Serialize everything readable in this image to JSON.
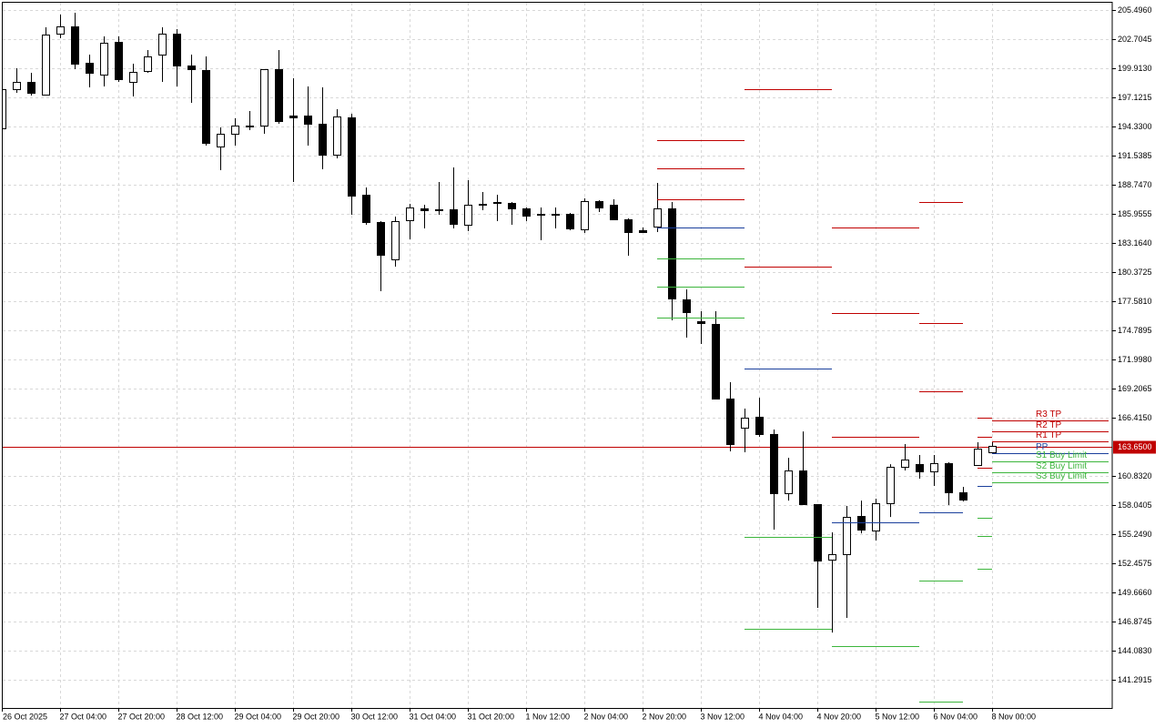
{
  "chart_data": {
    "type": "candlestick",
    "categories": [
      "26 Oct 2025",
      null,
      null,
      null,
      "27 Oct 04:00",
      null,
      null,
      null,
      "27 Oct 20:00",
      null,
      null,
      null,
      "28 Oct 12:00",
      null,
      null,
      null,
      "29 Oct 04:00",
      null,
      null,
      null,
      "29 Oct 20:00",
      null,
      null,
      null,
      "30 Oct 12:00",
      null,
      null,
      null,
      "31 Oct 04:00",
      null,
      null,
      null,
      "31 Oct 20:00",
      null,
      null,
      null,
      "1 Nov 12:00",
      null,
      null,
      null,
      "2 Nov 04:00",
      null,
      null,
      null,
      "2 Nov 20:00",
      null,
      null,
      null,
      "3 Nov 12:00",
      null,
      null,
      null,
      "4 Nov 04:00",
      null,
      null,
      null,
      "4 Nov 20:00",
      null,
      null,
      null,
      "5 Nov 12:00",
      null,
      null,
      null,
      "6 Nov 04:00",
      null,
      null,
      null,
      "8 Nov 00:00"
    ],
    "open": [
      194.16,
      197.91,
      198.6,
      197.38,
      203.23,
      203.93,
      200.44,
      199.3,
      202.44,
      198.6,
      199.65,
      201.22,
      203.23,
      200.18,
      199.74,
      192.41,
      193.63,
      194.33,
      194.42,
      199.83,
      195.38,
      195.38,
      194.59,
      191.63,
      195.2,
      187.79,
      185.17,
      181.59,
      185.34,
      186.48,
      186.3,
      186.39,
      184.91,
      186.83,
      187.09,
      187.0,
      186.48,
      185.87,
      185.96,
      185.96,
      184.47,
      187.18,
      186.83,
      185.43,
      184.38,
      184.73,
      186.48,
      177.75,
      175.66,
      175.4,
      168.25,
      165.45,
      166.5,
      164.84,
      159.17,
      161.35,
      158.13,
      152.8,
      153.33,
      156.99,
      155.6,
      158.21,
      161.7,
      161.96,
      161.27,
      162.05,
      159.26,
      161.88,
      163.1
    ],
    "high": [
      198.6,
      199.91,
      199.48,
      203.84,
      205.06,
      205.23,
      201.22,
      202.97,
      202.97,
      200.35,
      201.66,
      203.84,
      203.66,
      201.22,
      201.05,
      194.24,
      195.12,
      195.81,
      199.83,
      201.66,
      198.95,
      198.17,
      198.08,
      195.99,
      195.55,
      188.49,
      185.26,
      185.69,
      186.91,
      186.83,
      189.01,
      190.4,
      189.18,
      188.05,
      187.79,
      187.09,
      186.57,
      186.57,
      186.57,
      186.04,
      187.44,
      187.26,
      187.35,
      185.52,
      184.65,
      188.92,
      187.09,
      178.71,
      176.62,
      176.62,
      169.82,
      167.29,
      168.33,
      165.28,
      162.57,
      165.1,
      158.13,
      155.42,
      157.95,
      158.47,
      158.65,
      161.96,
      163.88,
      162.84,
      162.84,
      162.14,
      159.78,
      164.06,
      164.06
    ],
    "low": [
      194.16,
      197.56,
      197.3,
      197.38,
      202.79,
      199.83,
      198.08,
      198.17,
      198.6,
      197.21,
      199.48,
      198.6,
      198.17,
      196.6,
      192.5,
      190.14,
      192.5,
      193.98,
      193.63,
      194.59,
      189.01,
      192.5,
      190.23,
      191.28,
      185.87,
      184.91,
      178.54,
      180.9,
      183.51,
      184.56,
      185.87,
      184.56,
      184.3,
      186.3,
      185.26,
      184.91,
      185.26,
      183.43,
      184.56,
      184.38,
      184.12,
      186.13,
      185.34,
      181.94,
      184.12,
      184.21,
      175.75,
      174.09,
      173.48,
      168.25,
      163.19,
      163.1,
      164.58,
      155.68,
      158.47,
      158.13,
      148.18,
      145.82,
      147.22,
      155.33,
      154.64,
      156.9,
      161.35,
      160.57,
      159.87,
      158.04,
      158.39,
      161.88,
      163.01
    ],
    "close": [
      197.91,
      198.6,
      197.56,
      203.14,
      203.93,
      200.35,
      199.48,
      202.36,
      198.87,
      199.56,
      201.05,
      203.23,
      200.18,
      199.83,
      192.76,
      193.63,
      194.42,
      194.42,
      199.83,
      194.85,
      195.2,
      194.59,
      191.63,
      195.29,
      187.7,
      185.17,
      182.03,
      185.26,
      186.57,
      186.3,
      186.39,
      185.0,
      186.83,
      186.91,
      187.0,
      186.48,
      185.78,
      185.96,
      185.87,
      184.56,
      187.18,
      186.57,
      185.43,
      184.21,
      184.21,
      186.48,
      177.84,
      176.53,
      175.49,
      168.25,
      163.88,
      166.41,
      164.84,
      159.17,
      161.35,
      158.13,
      152.72,
      153.33,
      156.9,
      155.68,
      158.21,
      161.7,
      162.4,
      161.27,
      162.05,
      159.26,
      158.56,
      163.45,
      163.71
    ],
    "bull_color": "#ffffff",
    "bear_color": "#000000",
    "outline_color": "#000000",
    "ylim": [
      138.587,
      206.194
    ],
    "yticks": [
      {
        "value": 205.496,
        "label": "205.4960"
      },
      202.7045,
      {
        "value": 199.913,
        "label": "199.9130"
      },
      197.1215,
      {
        "value": 194.33,
        "label": "194.3300"
      },
      191.5385,
      {
        "value": 188.747,
        "label": "188.7470"
      },
      185.9555,
      {
        "value": 183.164,
        "label": "183.1640"
      },
      180.3725,
      {
        "value": 177.581,
        "label": "177.5810"
      },
      174.7895,
      {
        "value": 171.998,
        "label": "171.9980"
      },
      169.2065,
      {
        "value": 166.415,
        "label": "166.4150"
      },
      {
        "value": 160.832,
        "label": "160.8320"
      },
      158.0405,
      {
        "value": 155.249,
        "label": "155.2490"
      },
      152.4575,
      {
        "value": 149.666,
        "label": "149.6660"
      },
      146.8745,
      {
        "value": 144.083,
        "label": "144.0830"
      },
      141.2915
    ],
    "grid": true,
    "current_price": {
      "value": 163.65,
      "label": "163.6500",
      "color": "#c00000"
    },
    "levels": [
      {
        "start": 45,
        "end": 51,
        "value": 193.02,
        "color": "#c00000"
      },
      {
        "start": 45,
        "end": 51,
        "value": 190.32,
        "color": "#c00000"
      },
      {
        "start": 45,
        "end": 51,
        "value": 187.35,
        "color": "#c00000"
      },
      {
        "start": 45,
        "end": 51,
        "value": 184.65,
        "color": "#1a3f9c"
      },
      {
        "start": 45,
        "end": 51,
        "value": 181.68,
        "color": "#3cb53c"
      },
      {
        "start": 45,
        "end": 51,
        "value": 178.98,
        "color": "#3cb53c"
      },
      {
        "start": 45,
        "end": 51,
        "value": 176.01,
        "color": "#3cb53c"
      },
      {
        "start": 51,
        "end": 57,
        "value": 197.91,
        "color": "#c00000"
      },
      {
        "start": 51,
        "end": 57,
        "value": 180.9,
        "color": "#c00000"
      },
      {
        "start": 51,
        "end": 57,
        "value": 171.1,
        "color": "#1a3f9c"
      },
      {
        "start": 51,
        "end": 57,
        "value": 154.98,
        "color": "#3cb53c"
      },
      {
        "start": 51,
        "end": 57,
        "value": 146.17,
        "color": "#3cb53c"
      },
      {
        "start": 57,
        "end": 63,
        "value": 184.65,
        "color": "#c00000"
      },
      {
        "start": 57,
        "end": 63,
        "value": 176.45,
        "color": "#c00000"
      },
      {
        "start": 57,
        "end": 63,
        "value": 164.58,
        "color": "#c00000"
      },
      {
        "start": 57,
        "end": 63,
        "value": 156.38,
        "color": "#1a3f9c"
      },
      {
        "start": 57,
        "end": 63,
        "value": 144.52,
        "color": "#3cb53c"
      },
      {
        "start": 63,
        "end": 66,
        "value": 187.09,
        "color": "#c00000"
      },
      {
        "start": 63,
        "end": 66,
        "value": 175.49,
        "color": "#c00000"
      },
      {
        "start": 63,
        "end": 66,
        "value": 168.94,
        "color": "#c00000"
      },
      {
        "start": 63,
        "end": 66,
        "value": 157.34,
        "color": "#1a3f9c"
      },
      {
        "start": 63,
        "end": 66,
        "value": 150.8,
        "color": "#3cb53c"
      },
      {
        "start": 63,
        "end": 66,
        "value": 139.19,
        "color": "#3cb53c"
      },
      {
        "start": 67,
        "end": 68,
        "value": 166.41,
        "color": "#c00000"
      },
      {
        "start": 67,
        "end": 68,
        "value": 164.58,
        "color": "#c00000"
      },
      {
        "start": 67,
        "end": 68,
        "value": 161.62,
        "color": "#c00000"
      },
      {
        "start": 67,
        "end": 68,
        "value": 159.87,
        "color": "#1a3f9c"
      },
      {
        "start": 67,
        "end": 68,
        "value": 156.82,
        "color": "#3cb53c"
      },
      {
        "start": 67,
        "end": 68,
        "value": 155.07,
        "color": "#3cb53c"
      },
      {
        "start": 67,
        "end": 68,
        "value": 151.93,
        "color": "#3cb53c"
      },
      {
        "start": 68,
        "end": 76,
        "value": 166.15,
        "color": "#c00000",
        "label": "R3 TP"
      },
      {
        "start": 68,
        "end": 76,
        "value": 165.1,
        "color": "#c00000",
        "label": "R2 TP"
      },
      {
        "start": 68,
        "end": 76,
        "value": 164.14,
        "color": "#c00000",
        "label": "R1 TP"
      },
      {
        "start": 68,
        "end": 76,
        "value": 163.01,
        "color": "#1a3f9c",
        "label": "PP"
      },
      {
        "start": 68,
        "end": 76,
        "value": 162.23,
        "color": "#3cb53c",
        "label": "S1 Buy Limit"
      },
      {
        "start": 68,
        "end": 76,
        "value": 161.18,
        "color": "#3cb53c",
        "label": "S2 Buy Limit"
      },
      {
        "start": 68,
        "end": 76,
        "value": 160.22,
        "color": "#3cb53c",
        "label": "S3 Buy Limit"
      }
    ]
  }
}
